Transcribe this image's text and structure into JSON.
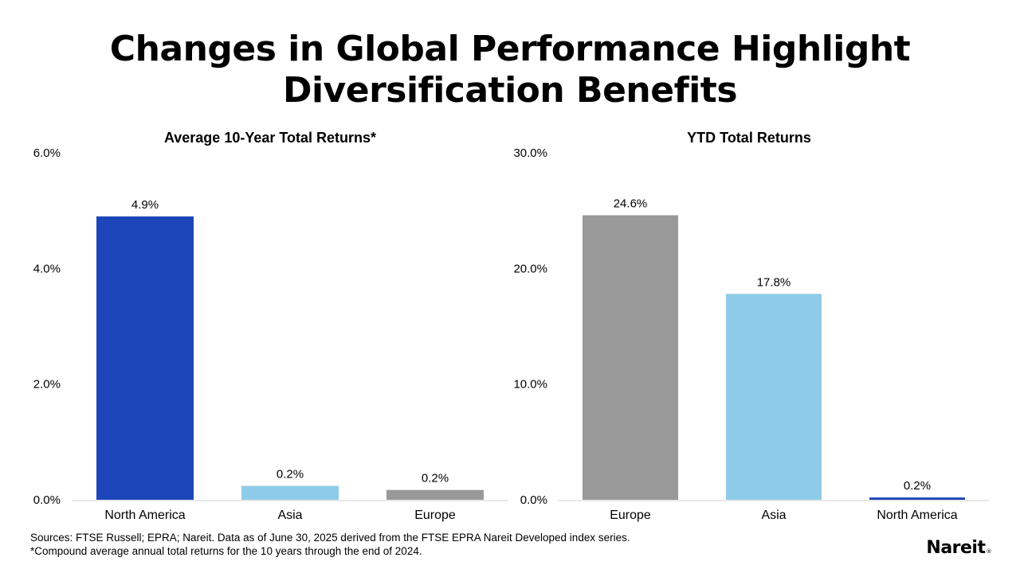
{
  "page": {
    "title_line1": "Changes in Global Performance Highlight",
    "title_line2": "Diversification Benefits",
    "footnote_sources": "Sources: FTSE Russell; EPRA; Nareit. Data as of June 30, 2025 derived from the FTSE EPRA Nareit Developed index series.",
    "footnote_asterisk": "*Compound average annual total returns for the 10 years through the end of 2024.",
    "logo_text": "Nareit",
    "logo_mark": "®"
  },
  "colors": {
    "north_america": "#1c46b9",
    "asia": "#8ecbe8",
    "europe": "#999999",
    "axis": "#d0d0d0"
  },
  "chart_data": [
    {
      "type": "bar",
      "title": "Average 10-Year Total Returns*",
      "categories": [
        "North America",
        "Asia",
        "Europe"
      ],
      "values": [
        4.9,
        0.24,
        0.17
      ],
      "data_labels": [
        "4.9%",
        "0.2%",
        "0.2%"
      ],
      "bar_colors": [
        "#1c46b9",
        "#8ecbe8",
        "#999999"
      ],
      "ylim": [
        0,
        6
      ],
      "yticks": [
        0,
        2,
        4,
        6
      ],
      "ytick_labels": [
        "0.0%",
        "2.0%",
        "4.0%",
        "6.0%"
      ],
      "grid": false,
      "legend": "none"
    },
    {
      "type": "bar",
      "title": "YTD Total Returns",
      "categories": [
        "Europe",
        "Asia",
        "North America"
      ],
      "values": [
        24.6,
        17.8,
        0.2
      ],
      "data_labels": [
        "24.6%",
        "17.8%",
        "0.2%"
      ],
      "bar_colors": [
        "#999999",
        "#8ecbe8",
        "#1c46b9"
      ],
      "ylim": [
        0,
        30
      ],
      "yticks": [
        0,
        10,
        20,
        30
      ],
      "ytick_labels": [
        "0.0%",
        "10.0%",
        "20.0%",
        "30.0%"
      ],
      "grid": false,
      "legend": "none"
    }
  ]
}
